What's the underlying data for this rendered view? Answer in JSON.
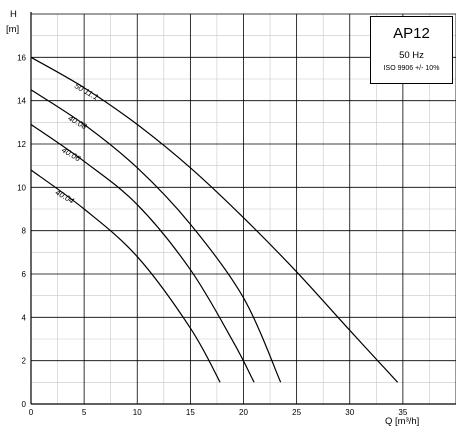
{
  "chart_data": {
    "type": "line",
    "title": "",
    "xlabel": "Q [m³/h]",
    "ylabel": "H\n[m]",
    "xlim": [
      0,
      40
    ],
    "ylim": [
      0,
      18
    ],
    "xticks": [
      "0",
      "5",
      "10",
      "15",
      "20",
      "25",
      "30",
      "35"
    ],
    "yticks": [
      "0",
      "2",
      "4",
      "6",
      "8",
      "10",
      "12",
      "14",
      "16"
    ],
    "grid": true,
    "legend": "none",
    "series": [
      {
        "name": "50 11.1",
        "x": [
          0,
          5,
          10,
          15,
          20,
          25,
          30,
          34.5
        ],
        "y": [
          16.0,
          14.6,
          12.9,
          10.9,
          8.6,
          6.1,
          3.4,
          1.0
        ]
      },
      {
        "name": "40.08",
        "x": [
          0,
          5,
          10,
          15,
          20,
          23.5
        ],
        "y": [
          14.5,
          12.9,
          10.9,
          8.3,
          4.9,
          1.0
        ]
      },
      {
        "name": "40.06",
        "x": [
          0,
          5,
          10,
          15,
          19,
          21
        ],
        "y": [
          12.9,
          11.2,
          9.2,
          6.2,
          2.9,
          1.0
        ]
      },
      {
        "name": "40.04",
        "x": [
          0,
          5,
          10,
          15,
          17.8
        ],
        "y": [
          10.8,
          9.0,
          6.8,
          3.5,
          1.0
        ]
      }
    ]
  },
  "info_box": {
    "model": "AP12",
    "frequency": "50 Hz",
    "standard": "ISO 9906 +/- 10%"
  }
}
